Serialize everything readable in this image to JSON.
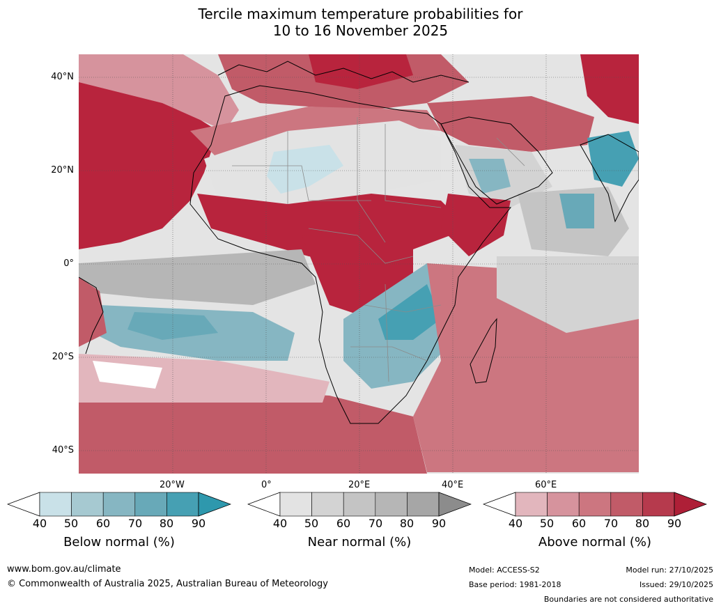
{
  "title": {
    "line1": "Tercile maximum temperature probabilities for",
    "line2": "10 to 16 November 2025"
  },
  "map": {
    "lat_labels": [
      "40°N",
      "20°N",
      "0°",
      "20°S",
      "40°S"
    ],
    "lon_labels": [
      "20°W",
      "0°",
      "20°E",
      "40°E",
      "60°E"
    ],
    "colors": {
      "ocean_base": "#e4e4e4",
      "coast": "#000000",
      "borders": "#8a8a8a",
      "grid": "#555555"
    }
  },
  "legends": [
    {
      "label": "Below normal (%)",
      "ticks": [
        "40",
        "50",
        "60",
        "70",
        "80",
        "90"
      ],
      "colors": [
        "#c9e1e8",
        "#a6c9d1",
        "#86b6c2",
        "#68a9b8",
        "#46a0b3",
        "#2e98ad"
      ]
    },
    {
      "label": "Near normal (%)",
      "ticks": [
        "40",
        "50",
        "60",
        "70",
        "80",
        "90"
      ],
      "colors": [
        "#e3e3e3",
        "#d3d3d3",
        "#c4c4c4",
        "#b6b6b6",
        "#a6a6a6",
        "#8c8c8c"
      ]
    },
    {
      "label": "Above normal (%)",
      "ticks": [
        "40",
        "50",
        "60",
        "70",
        "80",
        "90"
      ],
      "colors": [
        "#e2b6bd",
        "#d6939d",
        "#cc7680",
        "#c15b68",
        "#b63a4d",
        "#ae1f37"
      ]
    }
  ],
  "footer": {
    "website": "www.bom.gov.au/climate",
    "copyright": "© Commonwealth of Australia 2025, Australian Bureau of Meteorology",
    "model": "Model: ACCESS-S2",
    "base_period": "Base period: 1981-2018",
    "model_run": "Model run: 27/10/2025",
    "issued": "Issued: 29/10/2025",
    "disclaimer": "Boundaries are not considered authoritative"
  }
}
